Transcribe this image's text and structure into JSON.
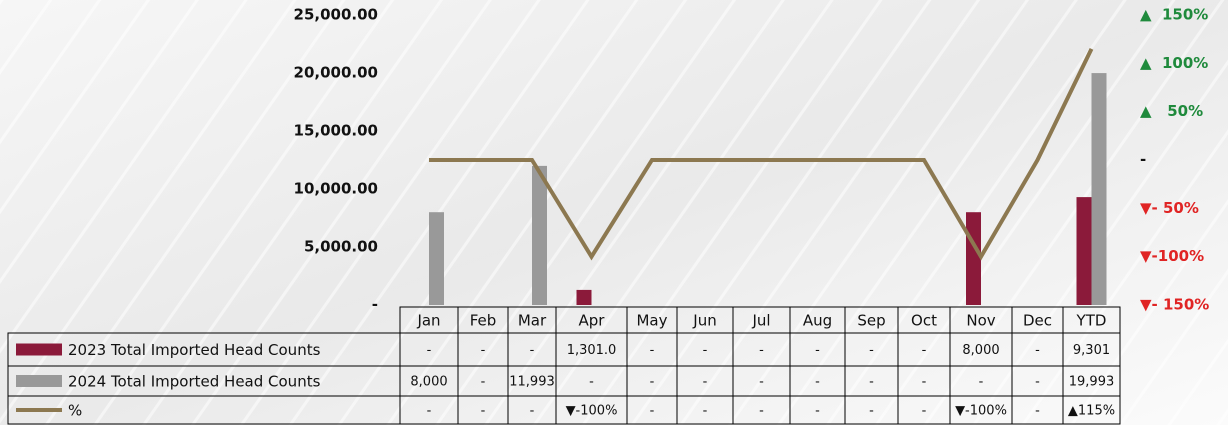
{
  "chart_data": {
    "type": "bar-line-table",
    "categories": [
      "Jan",
      "Feb",
      "Mar",
      "Apr",
      "May",
      "Jun",
      "Jul",
      "Aug",
      "Sep",
      "Oct",
      "Nov",
      "Dec",
      "YTD"
    ],
    "series": [
      {
        "name": "2023 Total Imported Head Counts",
        "type": "bar",
        "color": "#8b1a3a",
        "values": [
          0,
          0,
          0,
          1301,
          0,
          0,
          0,
          0,
          0,
          0,
          8000,
          0,
          9301
        ],
        "value_labels": [
          "-",
          "-",
          "-",
          "1,301.0",
          "-",
          "-",
          "-",
          "-",
          "-",
          "-",
          "8,000",
          "-",
          "9,301"
        ]
      },
      {
        "name": "2024 Total Imported Head Counts",
        "type": "bar",
        "color": "#999999",
        "values": [
          8000,
          0,
          11993,
          0,
          0,
          0,
          0,
          0,
          0,
          0,
          0,
          0,
          19993
        ],
        "value_labels": [
          "8,000",
          "-",
          "11,993",
          "-",
          "-",
          "-",
          "-",
          "-",
          "-",
          "-",
          "-",
          "-",
          "19,993"
        ]
      },
      {
        "name": "%",
        "type": "line",
        "axis": "y2",
        "color": "#8c7850",
        "values": [
          0,
          0,
          0,
          -100,
          0,
          0,
          0,
          0,
          0,
          0,
          -100,
          0,
          115
        ],
        "value_labels": [
          "-",
          "-",
          "-",
          "▼-100%",
          "-",
          "-",
          "-",
          "-",
          "-",
          "-",
          "▼-100%",
          "-",
          "▲115%"
        ]
      }
    ],
    "ylim": [
      0,
      25000
    ],
    "yticks": [
      {
        "value": 0,
        "label": "-"
      },
      {
        "value": 5000,
        "label": "5,000.00"
      },
      {
        "value": 10000,
        "label": "10,000.00"
      },
      {
        "value": 15000,
        "label": "15,000.00"
      },
      {
        "value": 20000,
        "label": "20,000.00"
      },
      {
        "value": 25000,
        "label": "25,000.00"
      }
    ],
    "y2lim": [
      -150,
      150
    ],
    "y2ticks": [
      {
        "value": -150,
        "label": "▼- 150%"
      },
      {
        "value": -100,
        "label": "▼-100%"
      },
      {
        "value": -50,
        "label": "▼- 50%"
      },
      {
        "value": 0,
        "label": "-"
      },
      {
        "value": 50,
        "label": "▲   50%"
      },
      {
        "value": 100,
        "label": "▲  100%"
      },
      {
        "value": 150,
        "label": "▲  150%"
      }
    ]
  }
}
